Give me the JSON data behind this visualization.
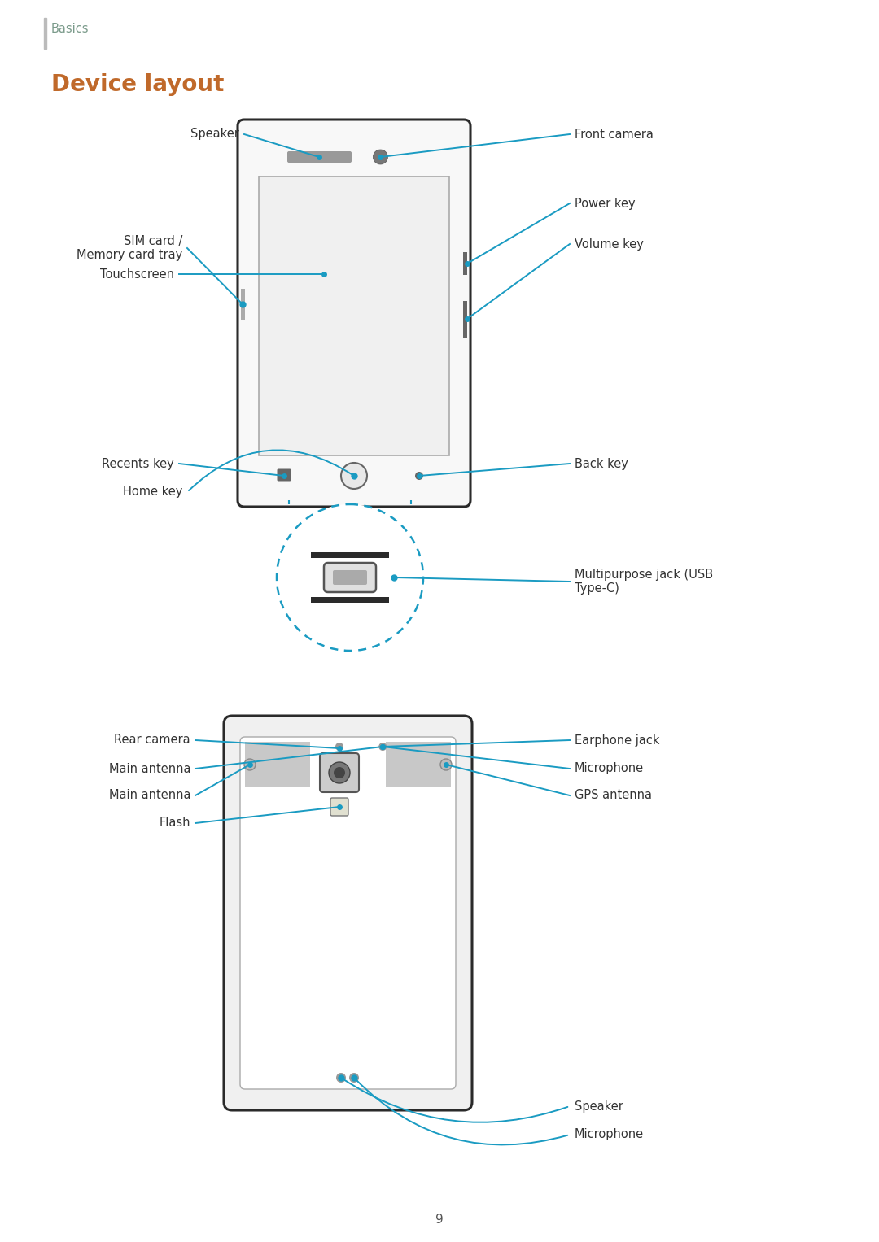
{
  "bg_color": "#ffffff",
  "line_color": "#1a9bc2",
  "device_edge": "#2a2a2a",
  "device_fill": "#ffffff",
  "button_color": "#555555",
  "gray_fill": "#cccccc",
  "title": "Device layout",
  "header": "Basics",
  "title_color": "#c0692a",
  "header_color": "#7a9a8a",
  "label_color": "#333333",
  "page_number": "9",
  "font_size_label": 10.5,
  "font_size_title": 20,
  "font_size_header": 10.5,
  "font_size_page": 11
}
